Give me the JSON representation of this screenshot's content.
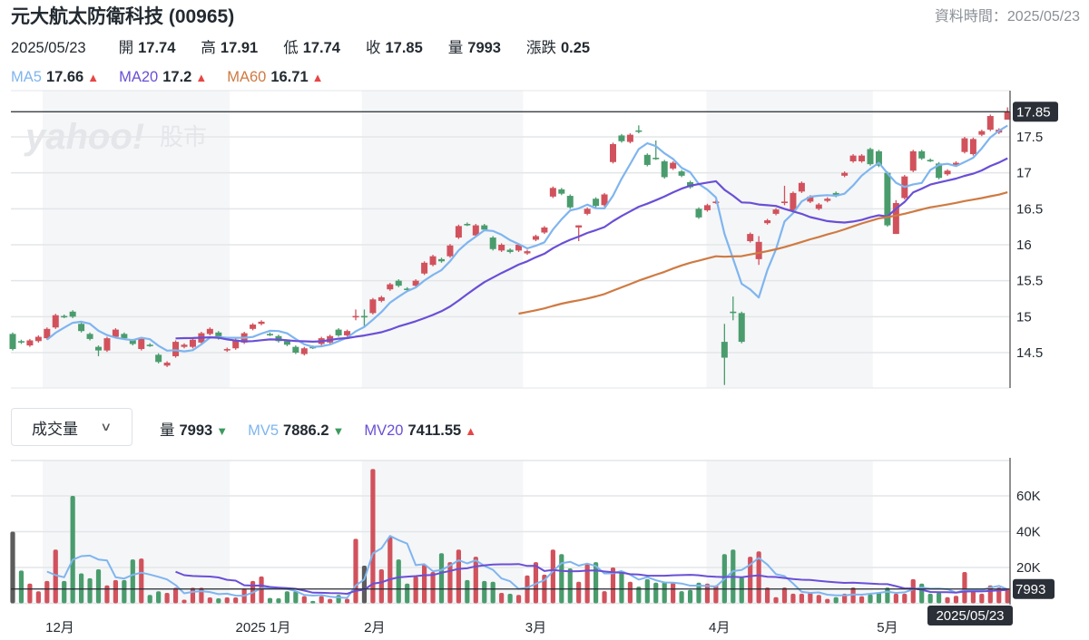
{
  "header": {
    "title": "元大航太防衛科技 (00965)",
    "data_time": "資料時間：2025/05/23"
  },
  "ohlc": {
    "date": "2025/05/23",
    "items": [
      {
        "label": "開",
        "value": "17.74"
      },
      {
        "label": "高",
        "value": "17.91"
      },
      {
        "label": "低",
        "value": "17.74"
      },
      {
        "label": "收",
        "value": "17.85"
      },
      {
        "label": "量",
        "value": "7993"
      },
      {
        "label": "漲跌",
        "value": "0.25"
      }
    ]
  },
  "ma_legend": [
    {
      "name": "MA5",
      "value": "17.66",
      "trend": "up",
      "color": "#7fb5ef"
    },
    {
      "name": "MA20",
      "value": "17.2",
      "trend": "up",
      "color": "#6a4fd6"
    },
    {
      "name": "MA60",
      "value": "16.71",
      "trend": "up",
      "color": "#cf7a42"
    }
  ],
  "volume_panel": {
    "selector_label": "成交量",
    "legend": [
      {
        "name": "量",
        "value": "7993",
        "trend": "down",
        "color": "#232a31"
      },
      {
        "name": "MV5",
        "value": "7886.2",
        "trend": "down",
        "color": "#7fb5ef"
      },
      {
        "name": "MV20",
        "value": "7411.55",
        "trend": "up",
        "color": "#6a4fd6"
      }
    ]
  },
  "watermark": "yahoo!股市",
  "colors": {
    "up": "#d1525c",
    "down": "#4a9c6d",
    "flat": "#5c5c5c",
    "band": "#f5f6f8",
    "grid": "#e3e5e8"
  },
  "chart_data": {
    "type": "candlestick",
    "price_axis": {
      "ticks": [
        14.5,
        15,
        15.5,
        16,
        16.5,
        17,
        17.5
      ],
      "labels": [
        "14.5",
        "15",
        "15.5",
        "16",
        "16.5",
        "17",
        "17.5"
      ],
      "range": [
        14.05,
        17.93
      ]
    },
    "volume_axis": {
      "ticks": [
        20000,
        40000,
        60000
      ],
      "labels": [
        "20K",
        "40K",
        "60K"
      ],
      "range": [
        0,
        80000
      ]
    },
    "last_price_label": "17.85",
    "last_volume_label": "7993",
    "last_date_label": "2025/05/23",
    "months": [
      {
        "label": "12月",
        "index": 5.5
      },
      {
        "label": "2025 1月",
        "index": 29.2
      },
      {
        "label": "2月",
        "index": 42.2
      },
      {
        "label": "3月",
        "index": 61
      },
      {
        "label": "4月",
        "index": 82.4
      },
      {
        "label": "5月",
        "index": 102
      }
    ],
    "shaded_ranges": [
      [
        4,
        25.8
      ],
      [
        41.2,
        60
      ],
      [
        81.4,
        100.8
      ]
    ],
    "ma_periods": [
      5,
      20,
      60
    ],
    "mv_periods": [
      5,
      20
    ],
    "candles_oc": [
      [
        14.76,
        14.55
      ],
      [
        14.66,
        14.64
      ],
      [
        14.6,
        14.67
      ],
      [
        14.66,
        14.72
      ],
      [
        14.7,
        14.83
      ],
      [
        14.85,
        15.02
      ],
      [
        15.01,
        15.0
      ],
      [
        15.07,
        15.0
      ],
      [
        14.9,
        14.8
      ],
      [
        14.76,
        14.69
      ],
      [
        14.58,
        14.53
      ],
      [
        14.53,
        14.7
      ],
      [
        14.72,
        14.82
      ],
      [
        14.76,
        14.7
      ],
      [
        14.67,
        14.62
      ],
      [
        14.55,
        14.69
      ],
      [
        14.61,
        14.6
      ],
      [
        14.47,
        14.37
      ],
      [
        14.32,
        14.36
      ],
      [
        14.45,
        14.65
      ],
      [
        14.58,
        14.61
      ],
      [
        14.58,
        14.68
      ],
      [
        14.64,
        14.77
      ],
      [
        14.76,
        14.83
      ],
      [
        14.78,
        14.7
      ],
      [
        14.53,
        14.55
      ],
      [
        14.56,
        14.68
      ],
      [
        14.64,
        14.77
      ],
      [
        14.83,
        14.89
      ],
      [
        14.9,
        14.93
      ],
      [
        14.76,
        14.75
      ],
      [
        14.73,
        14.66
      ],
      [
        14.66,
        14.61
      ],
      [
        14.58,
        14.5
      ],
      [
        14.48,
        14.56
      ],
      [
        14.58,
        14.57
      ],
      [
        14.62,
        14.7
      ],
      [
        14.64,
        14.73
      ],
      [
        14.82,
        14.74
      ],
      [
        14.74,
        14.8
      ],
      [
        14.99,
        15.01
      ],
      [
        15.01,
        15.0
      ],
      [
        15.05,
        15.24
      ],
      [
        15.22,
        15.27
      ],
      [
        15.38,
        15.45
      ],
      [
        15.5,
        15.43
      ],
      [
        15.39,
        15.38
      ],
      [
        15.43,
        15.5
      ],
      [
        15.6,
        15.75
      ],
      [
        15.72,
        15.84
      ],
      [
        15.8,
        15.77
      ],
      [
        15.84,
        15.99
      ],
      [
        16.1,
        16.26
      ],
      [
        16.29,
        16.28
      ],
      [
        16.13,
        16.27
      ],
      [
        16.27,
        16.21
      ],
      [
        16.1,
        15.94
      ],
      [
        15.92,
        16.0
      ],
      [
        15.93,
        15.9
      ],
      [
        15.92,
        16.0
      ],
      [
        15.88,
        15.91
      ],
      [
        16.07,
        16.12
      ],
      [
        16.17,
        16.24
      ],
      [
        16.67,
        16.79
      ],
      [
        16.77,
        16.71
      ],
      [
        16.68,
        16.52
      ],
      [
        16.24,
        16.27
      ],
      [
        16.43,
        16.5
      ],
      [
        16.64,
        16.54
      ],
      [
        16.55,
        16.7
      ],
      [
        17.15,
        17.4
      ],
      [
        17.52,
        17.44
      ],
      [
        17.43,
        17.53
      ],
      [
        17.59,
        17.58
      ],
      [
        17.25,
        17.11
      ],
      [
        17.21,
        17.2
      ],
      [
        17.16,
        16.94
      ],
      [
        17.06,
        17.14
      ],
      [
        17.02,
        16.96
      ],
      [
        16.87,
        16.8
      ],
      [
        16.5,
        16.38
      ],
      [
        16.48,
        16.55
      ],
      [
        16.59,
        16.6
      ],
      [
        14.65,
        14.43
      ],
      [
        15.07,
        15.06
      ],
      [
        15.05,
        14.65
      ],
      [
        16.05,
        16.15
      ],
      [
        15.8,
        16.04
      ],
      [
        16.3,
        16.34
      ],
      [
        16.43,
        16.49
      ],
      [
        16.58,
        16.6
      ],
      [
        16.47,
        16.72
      ],
      [
        16.74,
        16.86
      ],
      [
        16.6,
        16.67
      ],
      [
        16.5,
        16.56
      ],
      [
        16.61,
        16.64
      ],
      [
        16.72,
        16.68
      ],
      [
        16.96,
        17.0
      ],
      [
        17.16,
        17.24
      ],
      [
        17.16,
        17.24
      ],
      [
        17.33,
        17.12
      ],
      [
        17.3,
        17.1
      ],
      [
        17.0,
        16.27
      ],
      [
        16.15,
        16.58
      ],
      [
        16.65,
        16.95
      ],
      [
        17.03,
        17.3
      ],
      [
        17.3,
        17.2
      ],
      [
        17.18,
        17.17
      ],
      [
        17.13,
        16.93
      ],
      [
        16.98,
        17.03
      ],
      [
        17.11,
        17.14
      ],
      [
        17.29,
        17.48
      ],
      [
        17.26,
        17.47
      ],
      [
        17.53,
        17.58
      ],
      [
        17.6,
        17.79
      ],
      [
        17.56,
        17.6
      ],
      [
        17.74,
        17.85
      ]
    ],
    "wick_extremes": {
      "10": [
        14.6,
        14.45
      ],
      "40": [
        15.1,
        14.95
      ],
      "41": [
        15.1,
        14.85
      ],
      "66": [
        16.27,
        16.05
      ],
      "73": [
        17.66,
        17.55
      ],
      "75": [
        17.45,
        17.18
      ],
      "83": [
        14.9,
        14.05
      ],
      "84": [
        15.28,
        14.95
      ],
      "87": [
        16.12,
        15.72
      ],
      "90": [
        16.82,
        16.55
      ],
      "102": [
        17.02,
        16.25
      ],
      "103": [
        16.62,
        16.15
      ],
      "116": [
        17.91,
        17.74
      ]
    },
    "volumes": [
      40000,
      18300,
      11000,
      6700,
      12500,
      30000,
      12500,
      60000,
      16700,
      14000,
      19000,
      10000,
      13000,
      13000,
      24500,
      25000,
      4700,
      6700,
      5800,
      8700,
      2000,
      8700,
      8700,
      3300,
      2800,
      3300,
      3300,
      8300,
      12500,
      15000,
      3000,
      2800,
      6700,
      6700,
      4000,
      1300,
      4000,
      2500,
      4700,
      2500,
      36000,
      21000,
      75000,
      19000,
      37000,
      24500,
      11000,
      15000,
      21700,
      17500,
      28000,
      23000,
      30000,
      13000,
      26000,
      12500,
      12000,
      5800,
      5300,
      4700,
      15600,
      23000,
      16000,
      30000,
      27500,
      19500,
      12000,
      22000,
      23000,
      6800,
      20000,
      18000,
      12000,
      9300,
      13500,
      11500,
      12000,
      11500,
      6800,
      7500,
      11500,
      11000,
      10000,
      27500,
      30000,
      14400,
      26000,
      29000,
      8800,
      3400,
      8800,
      5400,
      5400,
      6000,
      4700,
      2500,
      3400,
      5400,
      8800,
      3900,
      5000,
      6000,
      8800,
      5400,
      5400,
      13500,
      11000,
      5400,
      6000,
      3400,
      4200,
      17500,
      6800,
      5400,
      10000,
      8800,
      7993
    ],
    "volume_flat_indices": [
      0,
      41
    ]
  }
}
